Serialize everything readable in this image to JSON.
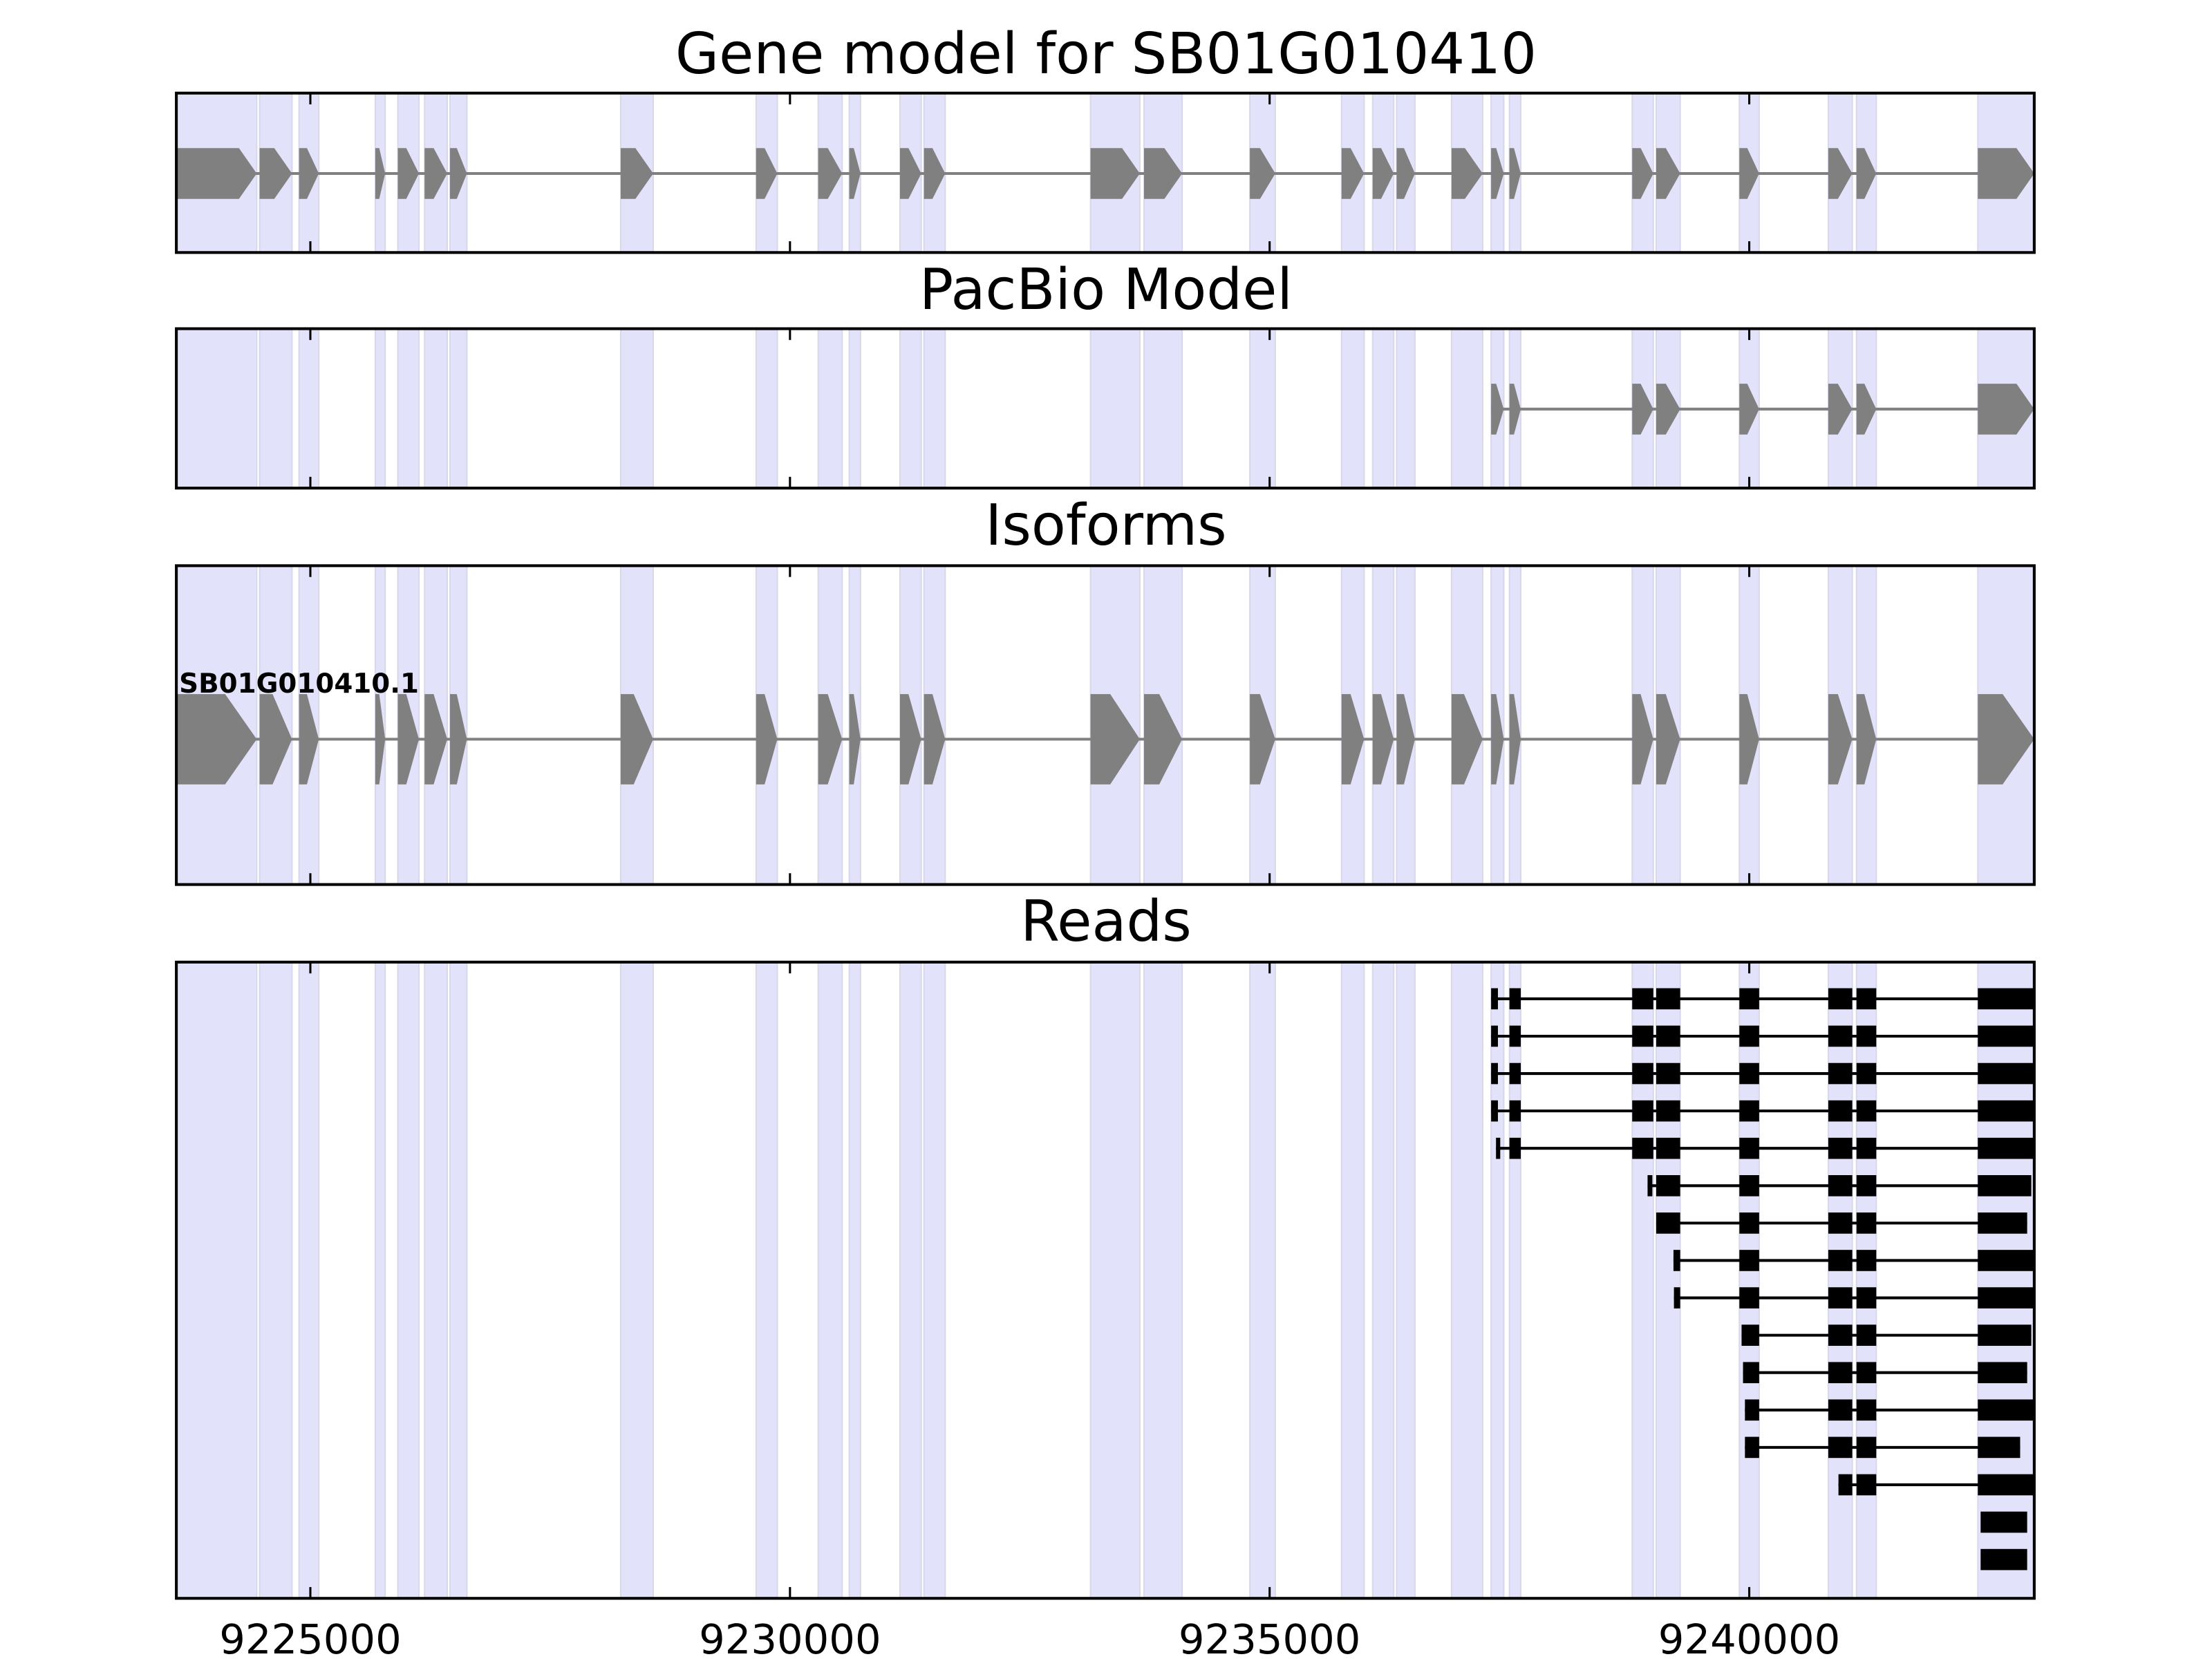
{
  "chart_data": {
    "type": "gene-track",
    "xlim": [
      9223603,
      9242971
    ],
    "xticks": [
      9225000,
      9230000,
      9235000,
      9240000
    ],
    "xtick_labels": [
      "9225000",
      "9230000",
      "9235000",
      "9240000"
    ],
    "colors": {
      "exon": "#808080",
      "shade": "#e2e2fa",
      "read": "#000000",
      "intron": "#808080"
    },
    "panels": {
      "gene_model": {
        "title": "Gene model for SB01G010410"
      },
      "pacbio": {
        "title": "PacBio Model"
      },
      "isoforms": {
        "title": "Isoforms",
        "isoform_label": "SB01G010410.1"
      },
      "reads": {
        "title": "Reads"
      }
    },
    "gene_exons": [
      [
        9223603,
        9224441
      ],
      [
        9224471,
        9224809
      ],
      [
        9224882,
        9225088
      ],
      [
        9225677,
        9225780
      ],
      [
        9225912,
        9226132
      ],
      [
        9226191,
        9226427
      ],
      [
        9226456,
        9226632
      ],
      [
        9228235,
        9228574
      ],
      [
        9229647,
        9229868
      ],
      [
        9230294,
        9230544
      ],
      [
        9230618,
        9230735
      ],
      [
        9231147,
        9231368
      ],
      [
        9231397,
        9231618
      ],
      [
        9233133,
        9233647
      ],
      [
        9233691,
        9234088
      ],
      [
        9234794,
        9235059
      ],
      [
        9235750,
        9235985
      ],
      [
        9236074,
        9236294
      ],
      [
        9236324,
        9236515
      ],
      [
        9236897,
        9237221
      ],
      [
        9237309,
        9237441
      ],
      [
        9237500,
        9237618
      ],
      [
        9238780,
        9239000
      ],
      [
        9239030,
        9239280
      ],
      [
        9239897,
        9240103
      ],
      [
        9240824,
        9241074
      ],
      [
        9241118,
        9241324
      ],
      [
        9242383,
        9242971
      ]
    ],
    "pacbio_exons": [
      [
        9237309,
        9237441
      ],
      [
        9237500,
        9237618
      ],
      [
        9238780,
        9239000
      ],
      [
        9239030,
        9239280
      ],
      [
        9239897,
        9240103
      ],
      [
        9240824,
        9241074
      ],
      [
        9241118,
        9241324
      ],
      [
        9242383,
        9242971
      ]
    ],
    "reads": [
      [
        [
          9237309,
          9237380
        ],
        [
          9237500,
          9237618
        ],
        [
          9238780,
          9239000
        ],
        [
          9239030,
          9239280
        ],
        [
          9239897,
          9240103
        ],
        [
          9240824,
          9241074
        ],
        [
          9241118,
          9241324
        ],
        [
          9242383,
          9242971
        ]
      ],
      [
        [
          9237309,
          9237380
        ],
        [
          9237500,
          9237618
        ],
        [
          9238780,
          9239000
        ],
        [
          9239030,
          9239280
        ],
        [
          9239897,
          9240103
        ],
        [
          9240824,
          9241074
        ],
        [
          9241118,
          9241324
        ],
        [
          9242383,
          9242971
        ]
      ],
      [
        [
          9237309,
          9237380
        ],
        [
          9237500,
          9237618
        ],
        [
          9238780,
          9239000
        ],
        [
          9239030,
          9239280
        ],
        [
          9239897,
          9240103
        ],
        [
          9240824,
          9241074
        ],
        [
          9241118,
          9241324
        ],
        [
          9242383,
          9242971
        ]
      ],
      [
        [
          9237309,
          9237380
        ],
        [
          9237500,
          9237618
        ],
        [
          9238780,
          9239000
        ],
        [
          9239030,
          9239280
        ],
        [
          9239897,
          9240103
        ],
        [
          9240824,
          9241074
        ],
        [
          9241118,
          9241324
        ],
        [
          9242383,
          9242971
        ]
      ],
      [
        [
          9237360,
          9237400
        ],
        [
          9237500,
          9237618
        ],
        [
          9238780,
          9239000
        ],
        [
          9239030,
          9239280
        ],
        [
          9239897,
          9240103
        ],
        [
          9240824,
          9241074
        ],
        [
          9241118,
          9241324
        ],
        [
          9242383,
          9242971
        ]
      ],
      [
        [
          9238940,
          9238990
        ],
        [
          9239030,
          9239280
        ],
        [
          9239897,
          9240103
        ],
        [
          9240824,
          9241074
        ],
        [
          9241118,
          9241324
        ],
        [
          9242383,
          9242940
        ]
      ],
      [
        [
          9239030,
          9239280
        ],
        [
          9239897,
          9240103
        ],
        [
          9240824,
          9241074
        ],
        [
          9241118,
          9241324
        ],
        [
          9242383,
          9242897
        ]
      ],
      [
        [
          9239210,
          9239280
        ],
        [
          9239897,
          9240103
        ],
        [
          9240824,
          9241074
        ],
        [
          9241118,
          9241324
        ],
        [
          9242383,
          9242971
        ]
      ],
      [
        [
          9239215,
          9239280
        ],
        [
          9239897,
          9240103
        ],
        [
          9240824,
          9241074
        ],
        [
          9241118,
          9241324
        ],
        [
          9242383,
          9242971
        ]
      ],
      [
        [
          9239920,
          9240103
        ],
        [
          9240824,
          9241074
        ],
        [
          9241118,
          9241324
        ],
        [
          9242383,
          9242940
        ]
      ],
      [
        [
          9239935,
          9240103
        ],
        [
          9240824,
          9241074
        ],
        [
          9241118,
          9241324
        ],
        [
          9242383,
          9242897
        ]
      ],
      [
        [
          9239955,
          9240103
        ],
        [
          9240824,
          9241074
        ],
        [
          9241118,
          9241324
        ],
        [
          9242383,
          9242971
        ]
      ],
      [
        [
          9239955,
          9240103
        ],
        [
          9240824,
          9241074
        ],
        [
          9241118,
          9241324
        ],
        [
          9242383,
          9242824
        ]
      ],
      [
        [
          9240930,
          9241074
        ],
        [
          9241118,
          9241324
        ],
        [
          9242383,
          9242971
        ]
      ],
      [
        [
          9242412,
          9242897
        ]
      ],
      [
        [
          9242412,
          9242897
        ]
      ]
    ]
  }
}
